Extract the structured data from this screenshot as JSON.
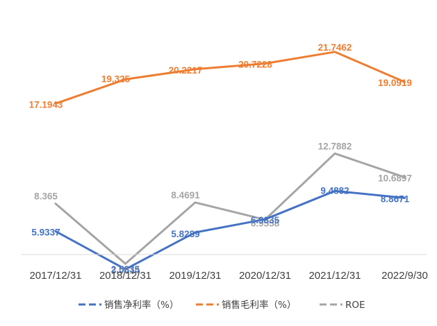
{
  "chart_data": {
    "type": "line",
    "title": "",
    "xlabel": "",
    "ylabel": "",
    "grid": false,
    "legend_position": "bottom",
    "categories": [
      "2017/12/31",
      "2018/12/31",
      "2019/12/31",
      "2020/12/31",
      "2021/12/31",
      "2022/9/30"
    ],
    "series": [
      {
        "name": "销售净利率（%）",
        "color": "#4472C4",
        "values": [
          5.9337,
          2.5835,
          5.8289,
          6.9835,
          9.4882,
          8.8671
        ],
        "labels": [
          "5.9337",
          "2.5835",
          "5.8289",
          "6.9835",
          "9.4882",
          "8.8671"
        ]
      },
      {
        "name": "销售毛利率（%）",
        "color": "#ED7D31",
        "values": [
          17.1943,
          19.325,
          20.2217,
          20.7228,
          21.7462,
          19.0919
        ],
        "labels": [
          "17.1943",
          "19.325",
          "20.2217",
          "20.7228",
          "21.7462",
          "19.0919"
        ]
      },
      {
        "name": "ROE",
        "color": "#A5A5A5",
        "values": [
          8.365,
          3.0614,
          8.4691,
          6.9558,
          12.7882,
          10.6897
        ],
        "labels": [
          "8.365",
          "3.0614",
          "8.4691",
          "6.9558",
          "12.7882",
          "10.6897"
        ]
      }
    ]
  }
}
